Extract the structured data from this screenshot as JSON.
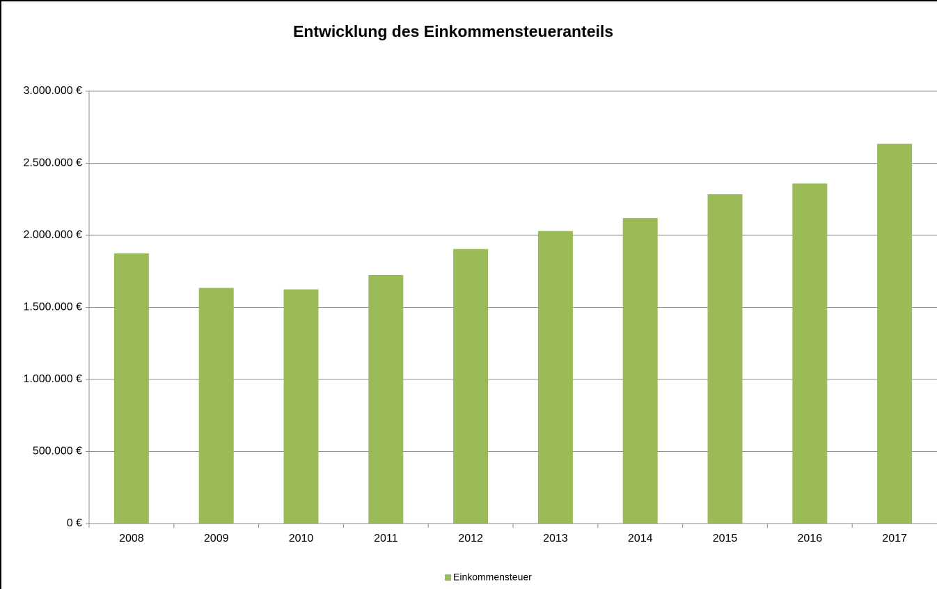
{
  "chart_data": {
    "type": "bar",
    "title": "Entwicklung des Einkommensteueranteils",
    "categories": [
      "2008",
      "2009",
      "2010",
      "2011",
      "2012",
      "2013",
      "2014",
      "2015",
      "2016",
      "2017"
    ],
    "series": [
      {
        "name": "Einkommensteuer",
        "color": "#9bbb59",
        "values": [
          1875000,
          1635000,
          1625000,
          1725000,
          1905000,
          2030000,
          2120000,
          2285000,
          2360000,
          2635000
        ]
      }
    ],
    "ylim": [
      0,
      3000000
    ],
    "yticks": [
      {
        "value": 0,
        "label": "0 €"
      },
      {
        "value": 500000,
        "label": "500.000 €"
      },
      {
        "value": 1000000,
        "label": "1.000.000 €"
      },
      {
        "value": 1500000,
        "label": "1.500.000 €"
      },
      {
        "value": 2000000,
        "label": "2.000.000 €"
      },
      {
        "value": 2500000,
        "label": "2.500.000 €"
      },
      {
        "value": 3000000,
        "label": "3.000.000 €"
      }
    ],
    "grid": true,
    "legend": "bottom"
  }
}
